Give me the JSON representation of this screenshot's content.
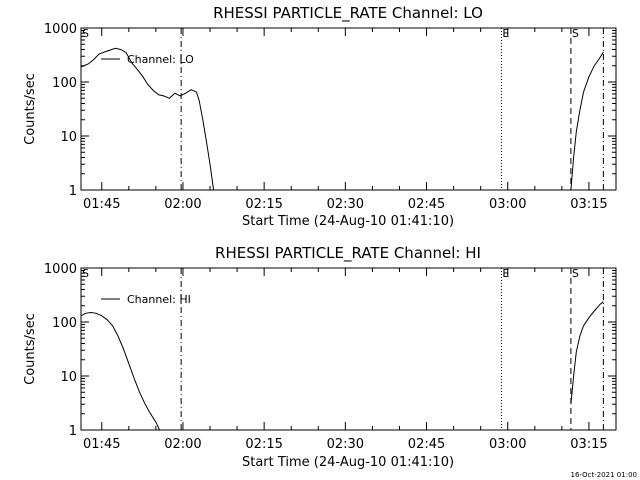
{
  "footer_timestamp": "16-Oct-2021 01:00",
  "chart_data": [
    {
      "type": "line",
      "title": "RHESSI PARTICLE_RATE Channel: LO",
      "xlabel": "Start Time (24-Aug-10 01:41:10)",
      "ylabel": "Counts/sec",
      "yscale": "log",
      "xlim": [
        "01:41:10",
        "03:20:00"
      ],
      "ylim": [
        1,
        1000
      ],
      "x_ticks": [
        "01:45",
        "02:00",
        "02:15",
        "02:30",
        "02:45",
        "03:00",
        "03:15"
      ],
      "y_ticks": [
        "1",
        "10",
        "100",
        "1000"
      ],
      "legend": {
        "label": "Channel: LO",
        "position": "top-left"
      },
      "markers": [
        {
          "label": "S",
          "time": "01:41:10",
          "style": "dashed"
        },
        {
          "label": "",
          "time": "01:59:40",
          "style": "dash-dot"
        },
        {
          "label": "E",
          "time": "02:58:50",
          "style": "dotted"
        },
        {
          "label": "S",
          "time": "03:11:40",
          "style": "dashed"
        },
        {
          "label": "",
          "time": "03:17:40",
          "style": "dash-dot"
        }
      ],
      "series": [
        {
          "name": "Channel: LO",
          "segments": [
            [
              [
                "01:41:10",
                190
              ],
              [
                "01:42:30",
                215
              ],
              [
                "01:43:30",
                260
              ],
              [
                "01:44:30",
                330
              ],
              [
                "01:45:30",
                360
              ],
              [
                "01:46:30",
                390
              ],
              [
                "01:47:30",
                420
              ],
              [
                "01:48:30",
                400
              ],
              [
                "01:49:30",
                350
              ],
              [
                "01:50:30",
                230
              ],
              [
                "01:51:30",
                175
              ],
              [
                "01:52:30",
                130
              ],
              [
                "01:53:30",
                90
              ],
              [
                "01:54:30",
                70
              ],
              [
                "01:55:30",
                58
              ],
              [
                "01:56:30",
                55
              ],
              [
                "01:57:30",
                50
              ],
              [
                "01:58:30",
                62
              ],
              [
                "01:59:30",
                55
              ],
              [
                "02:00:30",
                62
              ],
              [
                "02:01:30",
                72
              ],
              [
                "02:02:30",
                65
              ],
              [
                "02:03:00",
                45
              ],
              [
                "02:03:40",
                20
              ],
              [
                "02:04:20",
                8
              ],
              [
                "02:05:00",
                3
              ],
              [
                "02:05:40",
                1
              ]
            ],
            [
              [
                "03:11:40",
                1
              ],
              [
                "03:12:10",
                4
              ],
              [
                "03:12:40",
                12
              ],
              [
                "03:13:20",
                30
              ],
              [
                "03:14:00",
                65
              ],
              [
                "03:15:00",
                125
              ],
              [
                "03:16:00",
                200
              ],
              [
                "03:17:00",
                280
              ],
              [
                "03:17:40",
                360
              ]
            ]
          ]
        }
      ]
    },
    {
      "type": "line",
      "title": "RHESSI PARTICLE_RATE Channel: HI",
      "xlabel": "Start Time (24-Aug-10 01:41:10)",
      "ylabel": "Counts/sec",
      "yscale": "log",
      "xlim": [
        "01:41:10",
        "03:20:00"
      ],
      "ylim": [
        1,
        1000
      ],
      "x_ticks": [
        "01:45",
        "02:00",
        "02:15",
        "02:30",
        "02:45",
        "03:00",
        "03:15"
      ],
      "y_ticks": [
        "1",
        "10",
        "100",
        "1000"
      ],
      "legend": {
        "label": "Channel: HI",
        "position": "top-left"
      },
      "markers": [
        {
          "label": "S",
          "time": "01:41:10",
          "style": "dashed"
        },
        {
          "label": "",
          "time": "01:59:40",
          "style": "dash-dot"
        },
        {
          "label": "E",
          "time": "02:58:50",
          "style": "dotted"
        },
        {
          "label": "S",
          "time": "03:11:40",
          "style": "dashed"
        },
        {
          "label": "",
          "time": "03:17:40",
          "style": "dash-dot"
        }
      ],
      "series": [
        {
          "name": "Channel: HI",
          "segments": [
            [
              [
                "01:41:10",
                130
              ],
              [
                "01:42:00",
                145
              ],
              [
                "01:43:00",
                150
              ],
              [
                "01:44:00",
                145
              ],
              [
                "01:45:00",
                130
              ],
              [
                "01:46:00",
                110
              ],
              [
                "01:47:00",
                85
              ],
              [
                "01:48:00",
                55
              ],
              [
                "01:49:00",
                32
              ],
              [
                "01:50:00",
                17
              ],
              [
                "01:51:00",
                9
              ],
              [
                "01:52:00",
                5
              ],
              [
                "01:53:00",
                3
              ],
              [
                "01:54:00",
                2
              ],
              [
                "01:55:00",
                1.4
              ],
              [
                "01:55:40",
                1
              ]
            ],
            [
              [
                "03:11:40",
                3
              ],
              [
                "03:12:10",
                10
              ],
              [
                "03:12:40",
                28
              ],
              [
                "03:13:20",
                55
              ],
              [
                "03:14:00",
                85
              ],
              [
                "03:15:00",
                120
              ],
              [
                "03:16:00",
                160
              ],
              [
                "03:17:00",
                210
              ],
              [
                "03:17:40",
                240
              ]
            ]
          ]
        }
      ]
    }
  ]
}
